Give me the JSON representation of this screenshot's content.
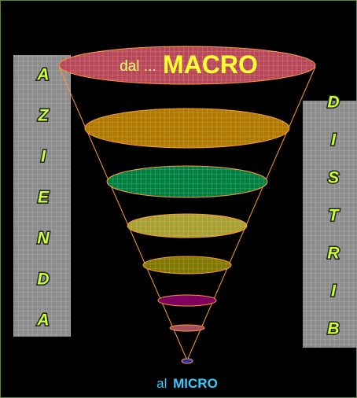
{
  "left_panel": {
    "letters": [
      "A",
      "Z",
      "I",
      "E",
      "N",
      "D",
      "A"
    ]
  },
  "right_panel": {
    "letters": [
      "D",
      "I",
      "S",
      "T",
      "R",
      "I",
      "B"
    ]
  },
  "top_label": {
    "prefix": "dal ...",
    "emphasis": "MACRO"
  },
  "bottom_label": {
    "prefix": "al",
    "emphasis": "MICRO"
  }
}
